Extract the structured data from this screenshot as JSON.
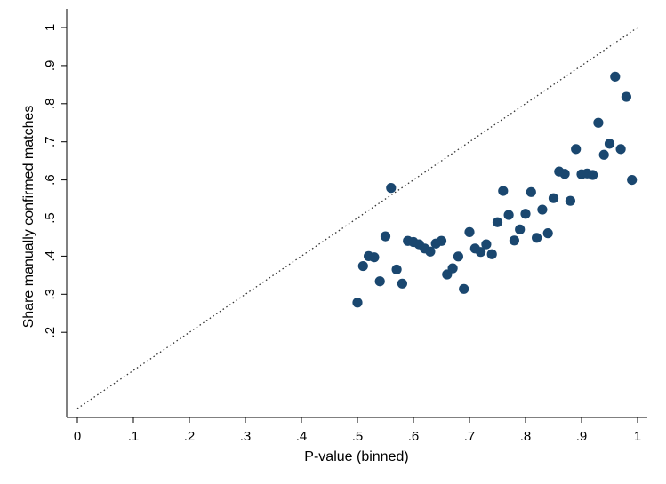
{
  "chart_data": {
    "type": "scatter",
    "xlabel": "P-value (binned)",
    "ylabel": "Share manually confirmed matches",
    "xlim": [
      0,
      1
    ],
    "ylim": [
      0,
      1
    ],
    "x_ticks": [
      "0",
      ".1",
      ".2",
      ".3",
      ".4",
      ".5",
      ".6",
      ".7",
      ".8",
      ".9",
      "1"
    ],
    "y_ticks": [
      ".2",
      ".3",
      ".4",
      ".5",
      ".6",
      ".7",
      ".8",
      ".9",
      "1"
    ],
    "grid": false,
    "reference_line": {
      "style": "dotted",
      "from": [
        0,
        0
      ],
      "to": [
        1,
        1
      ]
    },
    "marker_color": "#1a476f",
    "points": [
      {
        "x": 0.5,
        "y": 0.278
      },
      {
        "x": 0.51,
        "y": 0.374
      },
      {
        "x": 0.52,
        "y": 0.4
      },
      {
        "x": 0.53,
        "y": 0.397
      },
      {
        "x": 0.54,
        "y": 0.334
      },
      {
        "x": 0.55,
        "y": 0.452
      },
      {
        "x": 0.56,
        "y": 0.579
      },
      {
        "x": 0.57,
        "y": 0.365
      },
      {
        "x": 0.58,
        "y": 0.328
      },
      {
        "x": 0.59,
        "y": 0.44
      },
      {
        "x": 0.6,
        "y": 0.437
      },
      {
        "x": 0.61,
        "y": 0.431
      },
      {
        "x": 0.62,
        "y": 0.42
      },
      {
        "x": 0.63,
        "y": 0.412
      },
      {
        "x": 0.64,
        "y": 0.433
      },
      {
        "x": 0.65,
        "y": 0.44
      },
      {
        "x": 0.66,
        "y": 0.352
      },
      {
        "x": 0.67,
        "y": 0.368
      },
      {
        "x": 0.68,
        "y": 0.399
      },
      {
        "x": 0.69,
        "y": 0.314
      },
      {
        "x": 0.7,
        "y": 0.463
      },
      {
        "x": 0.71,
        "y": 0.42
      },
      {
        "x": 0.72,
        "y": 0.411
      },
      {
        "x": 0.73,
        "y": 0.431
      },
      {
        "x": 0.74,
        "y": 0.405
      },
      {
        "x": 0.75,
        "y": 0.489
      },
      {
        "x": 0.76,
        "y": 0.571
      },
      {
        "x": 0.77,
        "y": 0.508
      },
      {
        "x": 0.78,
        "y": 0.441
      },
      {
        "x": 0.79,
        "y": 0.47
      },
      {
        "x": 0.8,
        "y": 0.511
      },
      {
        "x": 0.81,
        "y": 0.568
      },
      {
        "x": 0.82,
        "y": 0.448
      },
      {
        "x": 0.83,
        "y": 0.522
      },
      {
        "x": 0.84,
        "y": 0.46
      },
      {
        "x": 0.85,
        "y": 0.552
      },
      {
        "x": 0.86,
        "y": 0.622
      },
      {
        "x": 0.87,
        "y": 0.616
      },
      {
        "x": 0.88,
        "y": 0.545
      },
      {
        "x": 0.89,
        "y": 0.681
      },
      {
        "x": 0.9,
        "y": 0.615
      },
      {
        "x": 0.91,
        "y": 0.617
      },
      {
        "x": 0.92,
        "y": 0.613
      },
      {
        "x": 0.93,
        "y": 0.75
      },
      {
        "x": 0.94,
        "y": 0.666
      },
      {
        "x": 0.95,
        "y": 0.695
      },
      {
        "x": 0.96,
        "y": 0.871
      },
      {
        "x": 0.97,
        "y": 0.681
      },
      {
        "x": 0.98,
        "y": 0.818
      },
      {
        "x": 0.99,
        "y": 0.6
      }
    ]
  }
}
